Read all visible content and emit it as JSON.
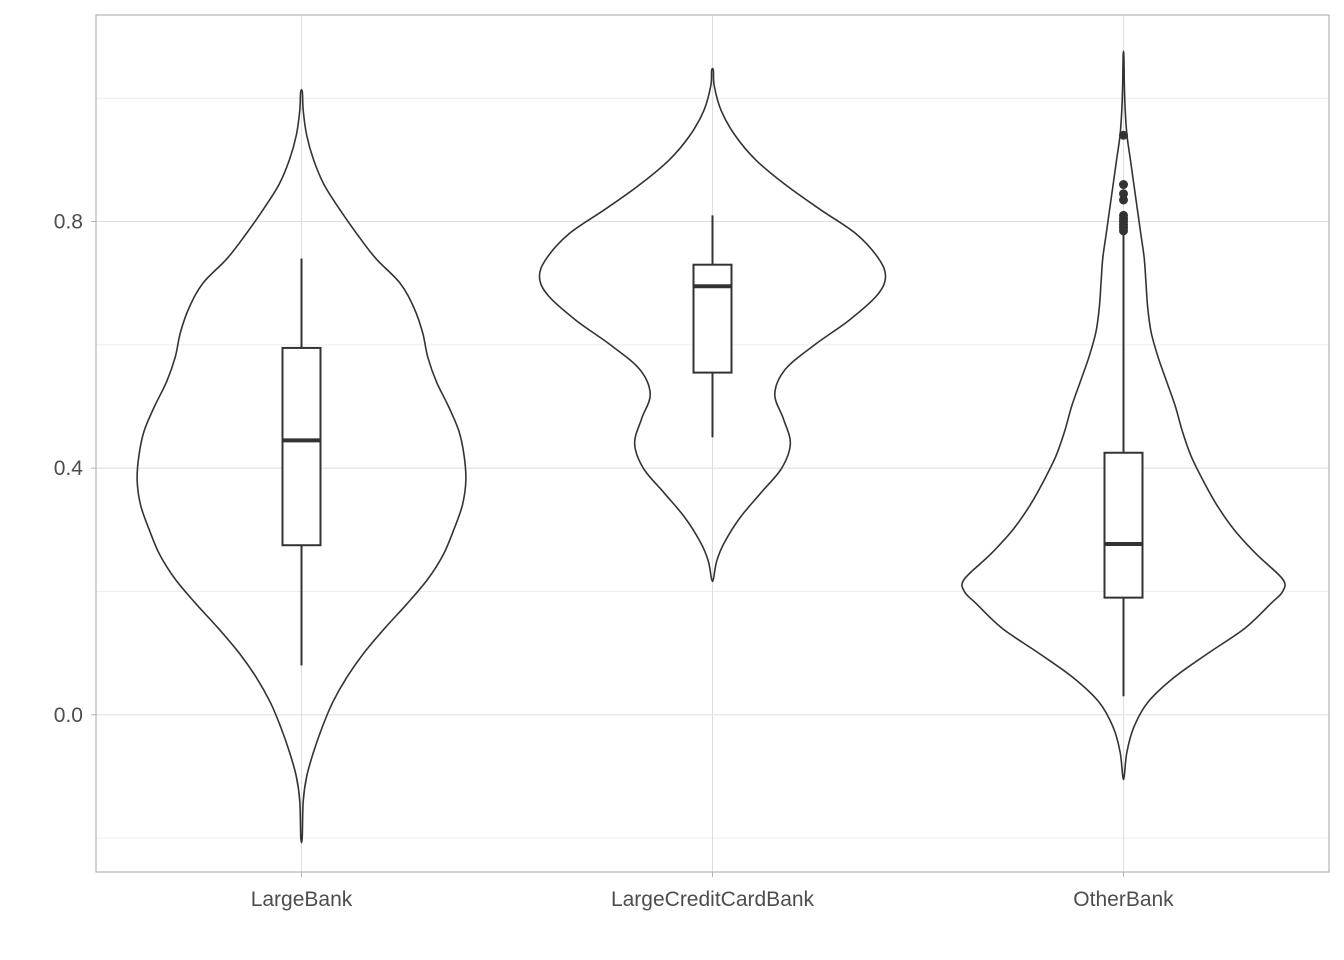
{
  "chart_data": {
    "type": "violin",
    "title": "",
    "xlabel": "",
    "ylabel": "",
    "categories": [
      "LargeBank",
      "LargeCreditCardBank",
      "OtherBank"
    ],
    "ylim": [
      -0.255,
      1.135
    ],
    "yticks": [
      0.0,
      0.4,
      0.8
    ],
    "ytick_labels": [
      "0.0",
      "0.4",
      "0.8"
    ],
    "y_minor_gridlines": [
      -0.2,
      0.2,
      0.6,
      1.0
    ],
    "grid": true,
    "series": [
      {
        "category": "LargeBank",
        "violin_range": [
          -0.2,
          1.01
        ],
        "box": {
          "lower_whisker": 0.08,
          "q1": 0.275,
          "median": 0.445,
          "q3": 0.595,
          "upper_whisker": 0.74
        },
        "outliers": [],
        "density": [
          [
            1.01,
            0.005
          ],
          [
            0.98,
            0.01
          ],
          [
            0.94,
            0.03
          ],
          [
            0.9,
            0.07
          ],
          [
            0.86,
            0.13
          ],
          [
            0.82,
            0.22
          ],
          [
            0.78,
            0.32
          ],
          [
            0.74,
            0.43
          ],
          [
            0.7,
            0.57
          ],
          [
            0.66,
            0.65
          ],
          [
            0.62,
            0.7
          ],
          [
            0.58,
            0.73
          ],
          [
            0.54,
            0.78
          ],
          [
            0.5,
            0.85
          ],
          [
            0.46,
            0.91
          ],
          [
            0.42,
            0.94
          ],
          [
            0.38,
            0.95
          ],
          [
            0.34,
            0.93
          ],
          [
            0.3,
            0.88
          ],
          [
            0.26,
            0.82
          ],
          [
            0.22,
            0.73
          ],
          [
            0.18,
            0.61
          ],
          [
            0.14,
            0.48
          ],
          [
            0.1,
            0.36
          ],
          [
            0.06,
            0.26
          ],
          [
            0.02,
            0.18
          ],
          [
            -0.02,
            0.12
          ],
          [
            -0.06,
            0.07
          ],
          [
            -0.1,
            0.03
          ],
          [
            -0.14,
            0.01
          ],
          [
            -0.2,
            0.004
          ]
        ]
      },
      {
        "category": "LargeCreditCardBank",
        "violin_range": [
          0.22,
          1.045
        ],
        "box": {
          "lower_whisker": 0.45,
          "q1": 0.555,
          "median": 0.695,
          "q3": 0.73,
          "upper_whisker": 0.81
        },
        "outliers": [],
        "density": [
          [
            1.045,
            0.005
          ],
          [
            1.02,
            0.01
          ],
          [
            0.98,
            0.05
          ],
          [
            0.94,
            0.13
          ],
          [
            0.9,
            0.25
          ],
          [
            0.86,
            0.42
          ],
          [
            0.82,
            0.62
          ],
          [
            0.78,
            0.83
          ],
          [
            0.74,
            0.96
          ],
          [
            0.71,
            1.0
          ],
          [
            0.68,
            0.95
          ],
          [
            0.64,
            0.79
          ],
          [
            0.6,
            0.59
          ],
          [
            0.56,
            0.42
          ],
          [
            0.52,
            0.36
          ],
          [
            0.48,
            0.41
          ],
          [
            0.44,
            0.45
          ],
          [
            0.4,
            0.4
          ],
          [
            0.36,
            0.28
          ],
          [
            0.32,
            0.16
          ],
          [
            0.28,
            0.07
          ],
          [
            0.25,
            0.025
          ],
          [
            0.22,
            0.005
          ]
        ]
      },
      {
        "category": "OtherBank",
        "violin_range": [
          -0.1,
          1.07
        ],
        "box": {
          "lower_whisker": 0.03,
          "q1": 0.19,
          "median": 0.277,
          "q3": 0.425,
          "upper_whisker": 0.78
        },
        "outliers": [
          0.94,
          0.86,
          0.845,
          0.835,
          0.81,
          0.805,
          0.8,
          0.795,
          0.79,
          0.785
        ],
        "density": [
          [
            1.07,
            0.002
          ],
          [
            1.02,
            0.005
          ],
          [
            0.98,
            0.01
          ],
          [
            0.94,
            0.02
          ],
          [
            0.9,
            0.04
          ],
          [
            0.86,
            0.06
          ],
          [
            0.82,
            0.08
          ],
          [
            0.78,
            0.1
          ],
          [
            0.74,
            0.12
          ],
          [
            0.7,
            0.13
          ],
          [
            0.66,
            0.14
          ],
          [
            0.62,
            0.16
          ],
          [
            0.58,
            0.2
          ],
          [
            0.54,
            0.25
          ],
          [
            0.5,
            0.3
          ],
          [
            0.46,
            0.34
          ],
          [
            0.42,
            0.39
          ],
          [
            0.38,
            0.46
          ],
          [
            0.34,
            0.54
          ],
          [
            0.3,
            0.64
          ],
          [
            0.26,
            0.77
          ],
          [
            0.22,
            0.92
          ],
          [
            0.2,
            0.92
          ],
          [
            0.18,
            0.85
          ],
          [
            0.14,
            0.7
          ],
          [
            0.1,
            0.49
          ],
          [
            0.06,
            0.29
          ],
          [
            0.02,
            0.14
          ],
          [
            -0.02,
            0.06
          ],
          [
            -0.06,
            0.02
          ],
          [
            -0.1,
            0.004
          ]
        ]
      }
    ]
  }
}
